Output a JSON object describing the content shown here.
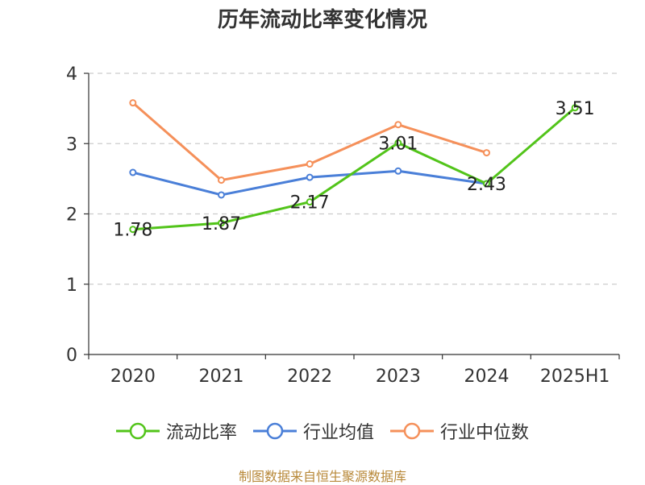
{
  "chart_data": {
    "type": "line",
    "title": "历年流动比率变化情况",
    "categories": [
      "2020",
      "2021",
      "2022",
      "2023",
      "2024",
      "2025H1"
    ],
    "ylim": [
      0,
      4
    ],
    "yticks": [
      "0",
      "1",
      "2",
      "3",
      "4"
    ],
    "grid": true,
    "legend_position": "bottom-center",
    "series": [
      {
        "name": "流动比率",
        "color": "#52c41a",
        "values": [
          1.78,
          1.87,
          2.17,
          3.01,
          2.43,
          3.51
        ],
        "labels": [
          "1.78",
          "1.87",
          "2.17",
          "3.01",
          "2.43",
          "3.51"
        ]
      },
      {
        "name": "行业均值",
        "color": "#4a7fd8",
        "values": [
          2.59,
          2.27,
          2.52,
          2.61,
          2.43,
          null
        ]
      },
      {
        "name": "行业中位数",
        "color": "#f5905a",
        "values": [
          3.58,
          2.48,
          2.71,
          3.27,
          2.87,
          null
        ]
      }
    ]
  },
  "footer": {
    "source": "制图数据来自恒生聚源数据库"
  }
}
